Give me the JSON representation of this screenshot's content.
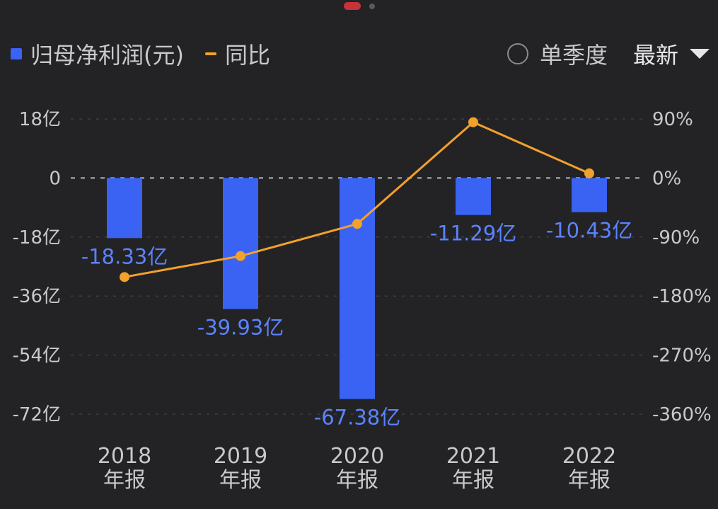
{
  "legend": {
    "bar_label": "归母净利润(元)",
    "line_label": "同比"
  },
  "controls": {
    "single_quarter_label": "单季度",
    "period_label": "最新"
  },
  "colors": {
    "background": "#232326",
    "bar": "#3a63f3",
    "line": "#f2a12b",
    "data_label": "#5b83ff",
    "page_dot_active": "#c8323a"
  },
  "chart_data": {
    "type": "bar",
    "categories": [
      [
        "2018",
        "年报"
      ],
      [
        "2019",
        "年报"
      ],
      [
        "2020",
        "年报"
      ],
      [
        "2021",
        "年报"
      ],
      [
        "2022",
        "年报"
      ]
    ],
    "series": [
      {
        "name": "归母净利润(元)",
        "type": "bar",
        "axis": "left",
        "values": [
          -18.33,
          -39.93,
          -67.38,
          -11.29,
          -10.43
        ],
        "labels": [
          "-18.33亿",
          "-39.93亿",
          "-67.38亿",
          "-11.29亿",
          "-10.43亿"
        ]
      },
      {
        "name": "同比",
        "type": "line",
        "axis": "right",
        "values": [
          -151,
          -119,
          -70,
          85,
          7
        ]
      }
    ],
    "left_axis": {
      "ticks": [
        18,
        0,
        -18,
        -36,
        -54,
        -72
      ],
      "tick_labels": [
        "18亿",
        "0",
        "-18亿",
        "-36亿",
        "-54亿",
        "-72亿"
      ],
      "ylim": [
        -72,
        18
      ]
    },
    "right_axis": {
      "ticks": [
        90,
        0,
        -90,
        -180,
        -270,
        -360
      ],
      "tick_labels": [
        "90%",
        "0%",
        "-90%",
        "-180%",
        "-270%",
        "-360%"
      ],
      "ylim": [
        -360,
        90
      ]
    },
    "grid": true,
    "legend_position": "top-left"
  }
}
